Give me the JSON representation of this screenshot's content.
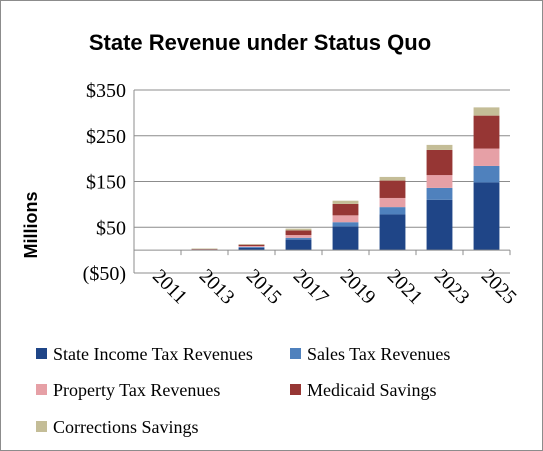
{
  "chart_data": {
    "type": "bar",
    "stacked": true,
    "title": "State Revenue under Status Quo",
    "xlabel": "",
    "ylabel": "Millions",
    "ylim": [
      -50,
      350
    ],
    "yticks": [
      -50,
      50,
      150,
      250,
      350
    ],
    "ytick_labels": [
      "($50)",
      "$50",
      "$150",
      "$250",
      "$350"
    ],
    "categories": [
      "2011",
      "2013",
      "2015",
      "2017",
      "2019",
      "2021",
      "2023",
      "2025"
    ],
    "grid": "horizontal",
    "legend_position": "bottom",
    "series": [
      {
        "name": "State Income Tax Revenues",
        "color": "#1f4587",
        "values": [
          0,
          1,
          5,
          23,
          52,
          78,
          110,
          148
        ]
      },
      {
        "name": "Sales Tax Revenues",
        "color": "#4f81bd",
        "values": [
          0,
          0.5,
          2,
          4,
          9,
          16,
          26,
          36
        ]
      },
      {
        "name": "Property Tax Revenues",
        "color": "#e6a0a6",
        "values": [
          0,
          0.5,
          2,
          6,
          15,
          20,
          28,
          38
        ]
      },
      {
        "name": "Medicaid Savings",
        "color": "#963634",
        "values": [
          0,
          1,
          3,
          10,
          25,
          38,
          55,
          72
        ]
      },
      {
        "name": "Corrections Savings",
        "color": "#c4bd97",
        "values": [
          0,
          0.5,
          1,
          4,
          7,
          8,
          11,
          18
        ]
      }
    ]
  }
}
